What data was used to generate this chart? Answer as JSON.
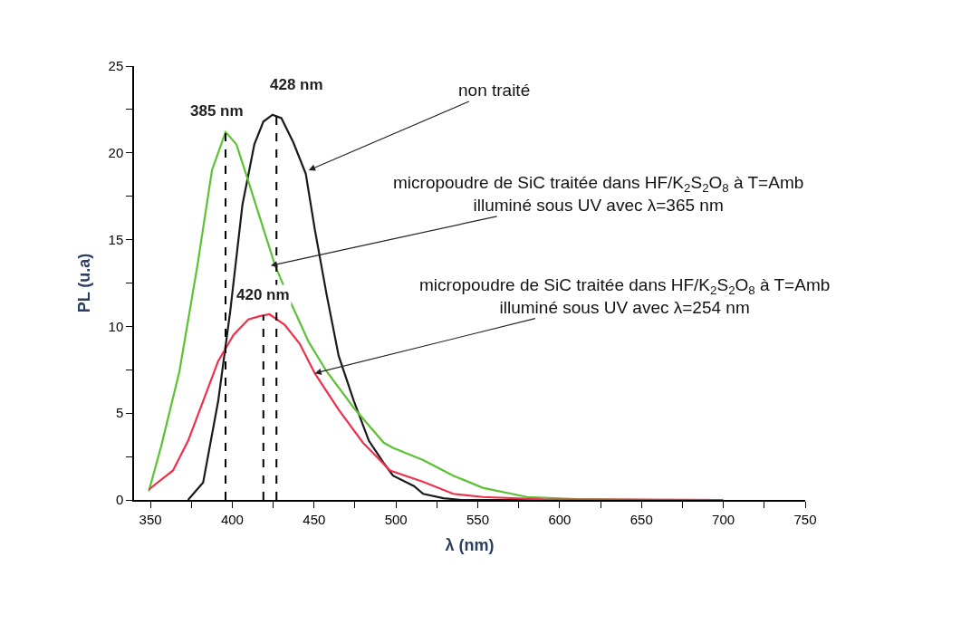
{
  "chart_data": {
    "type": "line",
    "xlabel": "λ (nm)",
    "ylabel": "PL (u.a)",
    "xlim": [
      340,
      750
    ],
    "ylim": [
      0,
      25
    ],
    "xticks": [
      350,
      {
        "value": 375,
        "label": null
      },
      400,
      {
        "value": 425,
        "label": null
      },
      450,
      {
        "value": 475,
        "label": null
      },
      500,
      {
        "value": 525,
        "label": null
      },
      550,
      {
        "value": 575,
        "label": null
      },
      600,
      {
        "value": 625,
        "label": null
      },
      650,
      {
        "value": 675,
        "label": null
      },
      700,
      {
        "value": 725,
        "label": null
      },
      750
    ],
    "yticks": [
      0,
      {
        "value": 2.5,
        "label": null
      },
      5,
      {
        "value": 7.5,
        "label": null
      },
      10,
      {
        "value": 12.5,
        "label": null
      },
      15,
      {
        "value": 17.5,
        "label": null
      },
      20,
      {
        "value": 22.5,
        "label": null
      },
      25
    ],
    "marker": "none",
    "line_style": "solid",
    "series": [
      {
        "color": "#1a1a1a",
        "x": [
          373,
          382.2,
          391.4,
          398.8,
          406.2,
          413.5,
          419,
          424.6,
          430,
          437.3,
          444.9,
          450.4,
          457.7,
          465,
          474.3,
          483.5,
          492.7,
          498.2,
          511,
          516.6,
          529,
          540,
          600
        ],
        "values": [
          0,
          1.0,
          5.7,
          10.9,
          17.0,
          20.5,
          21.8,
          22.2,
          22.0,
          20.6,
          18.8,
          15.6,
          11.8,
          8.3,
          5.7,
          3.4,
          2.1,
          1.4,
          0.8,
          0.35,
          0.1,
          0,
          0
        ]
      },
      {
        "color": "#5cc233",
        "x": [
          349,
          356.6,
          367.7,
          378.7,
          387.6,
          395.9,
          402.5,
          409.7,
          419.1,
          426.2,
          435.6,
          446.7,
          457.7,
          474.3,
          492.5,
          498.2,
          516.6,
          535,
          553,
          580,
          610,
          660
        ],
        "values": [
          0.5,
          3.1,
          7.4,
          13.5,
          19.0,
          21.2,
          20.5,
          18.4,
          15.6,
          13.5,
          11.4,
          9.1,
          7.4,
          5.3,
          3.3,
          3.0,
          2.3,
          1.4,
          0.7,
          0.17,
          0.05,
          0
        ]
      },
      {
        "color": "#f0304a",
        "x": [
          349,
          363.8,
          373,
          382.2,
          391.4,
          400.7,
          409.8,
          417.2,
          422.7,
          432,
          441.2,
          450.4,
          465,
          479.8,
          496.4,
          516.6,
          535,
          553,
          590,
          700
        ],
        "values": [
          0.6,
          1.7,
          3.4,
          5.7,
          8.0,
          9.5,
          10.4,
          10.6,
          10.7,
          10.1,
          9.0,
          7.3,
          5.2,
          3.3,
          1.7,
          1.04,
          0.35,
          0.17,
          0.03,
          0
        ]
      }
    ],
    "ref_lines": [
      {
        "axis": "x",
        "value": 395.9,
        "color": "#000000",
        "line_style": "dashed"
      },
      {
        "axis": "x",
        "value": 419,
        "color": "#000000",
        "line_style": "dashed"
      },
      {
        "axis": "x",
        "value": 427,
        "color": "#000000",
        "line_style": "dashed"
      }
    ],
    "annotations": [
      {
        "text": "385 nm",
        "x": 395.9,
        "y": 21.2
      },
      {
        "text": "428 nm",
        "x": 427,
        "y": 22.2
      },
      {
        "text": "420 nm",
        "x": 419,
        "y": 10.6
      },
      {
        "text": "non traité",
        "x": 446.7,
        "y": 19.0
      },
      {
        "text": "micropoudre de SiC traitée dans HF/K$_{2}$S$_{2}$O$_{8}$ à T=Amb\nilluminé sous UV avec λ=365 nm",
        "x": 423.5,
        "y": 13.5
      },
      {
        "text": "micropoudre de SiC traitée dans HF/K$_{2}$S$_{2}$O$_{8}$ à T=Amb\nilluminé sous UV avec λ=254 nm",
        "x": 450.4,
        "y": 7.3
      }
    ]
  }
}
